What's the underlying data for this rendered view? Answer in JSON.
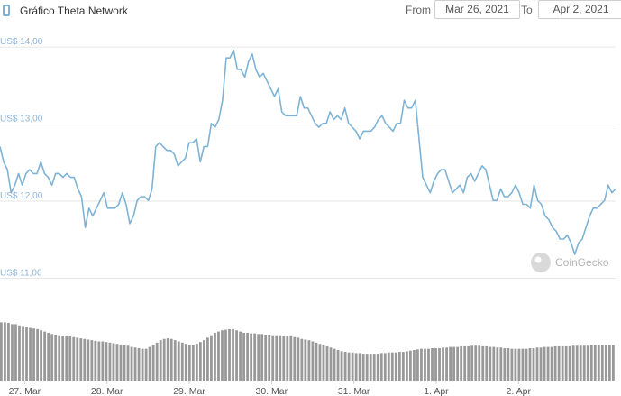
{
  "header": {
    "title": "Gráfico Theta Network",
    "from_label": "From",
    "from_value": "Mar 26, 2021",
    "to_label": "To",
    "to_value": "Apr 2, 2021"
  },
  "watermark": {
    "text": "CoinGecko",
    "icon": "gecko-logo-icon"
  },
  "colors": {
    "line": "#7fb3d5",
    "volume": "#999999",
    "grid": "#e6e6e6"
  },
  "chart_data": {
    "type": "line",
    "title": "Gráfico Theta Network",
    "yticks": [
      "US$ 14,00",
      "US$ 13,00",
      "US$ 12,00",
      "US$ 11,00"
    ],
    "ytick_values": [
      14,
      13,
      12,
      11
    ],
    "ylim": [
      10.9,
      14.2
    ],
    "xticks": [
      "27. Mar",
      "28. Mar",
      "29. Mar",
      "30. Mar",
      "31. Mar",
      "1. Apr",
      "2. Apr"
    ],
    "xlim": [
      -0.3,
      7.18
    ],
    "grid": "horizontal",
    "series": [
      {
        "values": [
          12.65,
          12.45,
          12.35,
          12.05,
          12.15,
          12.3,
          12.15,
          12.3,
          12.35,
          12.3,
          12.3,
          12.45,
          12.3,
          12.25,
          12.15,
          12.3,
          12.3,
          12.25,
          12.3,
          12.25,
          12.25,
          12.1,
          12.0,
          11.6,
          11.85,
          11.75,
          11.85,
          11.95,
          12.05,
          11.85,
          11.85,
          11.85,
          11.9,
          12.05,
          11.9,
          11.65,
          11.75,
          11.95,
          12.0,
          12.0,
          11.95,
          12.1,
          12.65,
          12.7,
          12.65,
          12.6,
          12.6,
          12.55,
          12.4,
          12.45,
          12.5,
          12.7,
          12.7,
          12.75,
          12.45,
          12.65,
          12.65,
          12.95,
          12.9,
          13.0,
          13.25,
          13.8,
          13.8,
          13.9,
          13.65,
          13.65,
          13.55,
          13.75,
          13.85,
          13.65,
          13.55,
          13.6,
          13.5,
          13.4,
          13.3,
          13.4,
          13.1,
          13.05,
          13.05,
          13.05,
          13.05,
          13.3,
          13.15,
          13.15,
          13.05,
          12.95,
          12.9,
          12.95,
          12.95,
          13.1,
          13.0,
          13.05,
          13.0,
          13.15,
          12.95,
          12.9,
          12.85,
          12.75,
          12.85,
          12.85,
          12.85,
          12.9,
          13.0,
          13.05,
          12.95,
          12.9,
          12.85,
          12.95,
          12.95,
          13.25,
          13.15,
          13.15,
          13.25,
          12.75,
          12.25,
          12.15,
          12.05,
          12.2,
          12.3,
          12.35,
          12.35,
          12.2,
          12.05,
          12.1,
          12.15,
          12.05,
          12.25,
          12.3,
          12.2,
          12.3,
          12.4,
          12.35,
          12.15,
          11.95,
          11.95,
          12.1,
          12.0,
          12.0,
          12.05,
          12.15,
          12.05,
          11.9,
          11.9,
          11.85,
          12.15,
          11.95,
          11.9,
          11.75,
          11.7,
          11.6,
          11.55,
          11.45,
          11.45,
          11.5,
          11.4,
          11.25,
          11.4,
          11.45,
          11.6,
          11.75,
          11.85,
          11.85,
          11.9,
          11.95,
          12.15,
          12.05,
          12.1
        ]
      }
    ],
    "volume": [
      0.95,
      0.95,
      0.94,
      0.92,
      0.92,
      0.9,
      0.89,
      0.88,
      0.86,
      0.85,
      0.84,
      0.82,
      0.8,
      0.78,
      0.76,
      0.75,
      0.74,
      0.73,
      0.72,
      0.72,
      0.71,
      0.7,
      0.69,
      0.68,
      0.67,
      0.66,
      0.65,
      0.64,
      0.64,
      0.63,
      0.62,
      0.61,
      0.6,
      0.59,
      0.58,
      0.57,
      0.55,
      0.54,
      0.53,
      0.52,
      0.52,
      0.55,
      0.58,
      0.62,
      0.66,
      0.68,
      0.69,
      0.68,
      0.66,
      0.64,
      0.62,
      0.6,
      0.58,
      0.58,
      0.6,
      0.63,
      0.66,
      0.7,
      0.74,
      0.78,
      0.8,
      0.82,
      0.83,
      0.84,
      0.84,
      0.82,
      0.8,
      0.78,
      0.78,
      0.77,
      0.77,
      0.76,
      0.76,
      0.75,
      0.75,
      0.74,
      0.74,
      0.74,
      0.73,
      0.73,
      0.72,
      0.71,
      0.7,
      0.68,
      0.67,
      0.66,
      0.64,
      0.62,
      0.6,
      0.58,
      0.56,
      0.54,
      0.52,
      0.5,
      0.48,
      0.47,
      0.46,
      0.46,
      0.45,
      0.45,
      0.44,
      0.44,
      0.44,
      0.44,
      0.44,
      0.45,
      0.45,
      0.46,
      0.46,
      0.46,
      0.47,
      0.47,
      0.48,
      0.49,
      0.5,
      0.51,
      0.52,
      0.52,
      0.52,
      0.53,
      0.53,
      0.53,
      0.54,
      0.54,
      0.55,
      0.55,
      0.55,
      0.56,
      0.56,
      0.56,
      0.57,
      0.57,
      0.57,
      0.56,
      0.56,
      0.55,
      0.55,
      0.54,
      0.54,
      0.53,
      0.53,
      0.52,
      0.52,
      0.52,
      0.52,
      0.52,
      0.53,
      0.53,
      0.54,
      0.54,
      0.55,
      0.55,
      0.55,
      0.56,
      0.56,
      0.56,
      0.56,
      0.56,
      0.57,
      0.57,
      0.57,
      0.57,
      0.57,
      0.58,
      0.58,
      0.58,
      0.58,
      0.58,
      0.58,
      0.58
    ]
  }
}
